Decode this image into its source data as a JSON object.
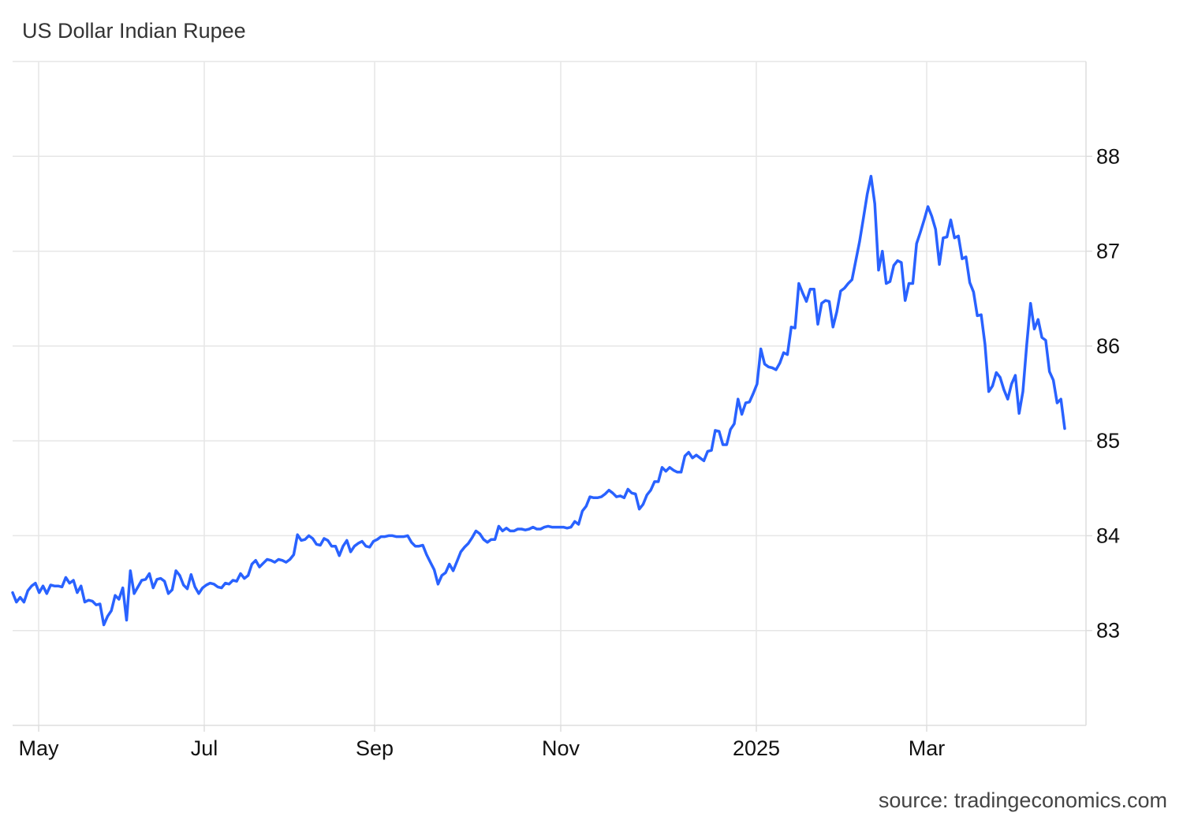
{
  "title": "US Dollar Indian Rupee",
  "source": "source: tradingeconomics.com",
  "colors": {
    "line": "#2962ff",
    "grid": "#e6e6e6",
    "axis": "#dddddd"
  },
  "chart_data": {
    "type": "line",
    "title": "US Dollar Indian Rupee",
    "xlabel": "",
    "ylabel": "",
    "x_ticks": [
      "May",
      "Jul",
      "Sep",
      "Nov",
      "2025",
      "Mar"
    ],
    "y_ticks": [
      83,
      84,
      85,
      86,
      87,
      88
    ],
    "ylim": [
      82,
      89
    ],
    "grid": true,
    "y_axis_side": "right",
    "series": [
      {
        "values": [
          83.4,
          83.3,
          83.35,
          83.3,
          83.42,
          83.47,
          83.5,
          83.4,
          83.47,
          83.39,
          83.48,
          83.47,
          83.47,
          83.46,
          83.56,
          83.5,
          83.53,
          83.4,
          83.47,
          83.3,
          83.32,
          83.31,
          83.27,
          83.28,
          83.06,
          83.15,
          83.21,
          83.37,
          83.33,
          83.45,
          83.11,
          83.63,
          83.39,
          83.46,
          83.53,
          83.54,
          83.6,
          83.45,
          83.54,
          83.55,
          83.52,
          83.39,
          83.43,
          83.63,
          83.58,
          83.48,
          83.44,
          83.59,
          83.46,
          83.39,
          83.45,
          83.48,
          83.5,
          83.49,
          83.46,
          83.45,
          83.5,
          83.49,
          83.53,
          83.52,
          83.6,
          83.55,
          83.58,
          83.7,
          83.74,
          83.67,
          83.71,
          83.75,
          83.74,
          83.72,
          83.75,
          83.74,
          83.72,
          83.75,
          83.8,
          84.01,
          83.95,
          83.96,
          84.0,
          83.97,
          83.91,
          83.9,
          83.97,
          83.95,
          83.89,
          83.89,
          83.79,
          83.89,
          83.95,
          83.83,
          83.89,
          83.92,
          83.94,
          83.89,
          83.88,
          83.94,
          83.96,
          83.99,
          83.99,
          84.0,
          84.0,
          83.99,
          83.99,
          83.99,
          84.0,
          83.93,
          83.89,
          83.89,
          83.9,
          83.8,
          83.72,
          83.64,
          83.49,
          83.58,
          83.61,
          83.7,
          83.63,
          83.73,
          83.83,
          83.88,
          83.92,
          83.98,
          84.05,
          84.02,
          83.96,
          83.93,
          83.96,
          83.96,
          84.1,
          84.05,
          84.08,
          84.05,
          84.05,
          84.07,
          84.07,
          84.06,
          84.07,
          84.09,
          84.07,
          84.07,
          84.09,
          84.1,
          84.09,
          84.09,
          84.09,
          84.09,
          84.08,
          84.09,
          84.15,
          84.12,
          84.26,
          84.31,
          84.41,
          84.4,
          84.4,
          84.41,
          84.44,
          84.48,
          84.45,
          84.41,
          84.42,
          84.4,
          84.49,
          84.45,
          84.44,
          84.28,
          84.33,
          84.43,
          84.48,
          84.57,
          84.57,
          84.72,
          84.68,
          84.72,
          84.69,
          84.67,
          84.67,
          84.84,
          84.88,
          84.82,
          84.85,
          84.82,
          84.79,
          84.89,
          84.9,
          85.11,
          85.1,
          84.96,
          84.96,
          85.12,
          85.18,
          85.44,
          85.28,
          85.4,
          85.41,
          85.5,
          85.6,
          85.97,
          85.81,
          85.78,
          85.77,
          85.75,
          85.82,
          85.93,
          85.91,
          86.2,
          86.19,
          86.66,
          86.56,
          86.47,
          86.6,
          86.6,
          86.23,
          86.45,
          86.48,
          86.47,
          86.2,
          86.36,
          86.58,
          86.61,
          86.66,
          86.7,
          86.9,
          87.1,
          87.35,
          87.6,
          87.79,
          87.5,
          86.8,
          87.0,
          86.66,
          86.68,
          86.85,
          86.9,
          86.88,
          86.48,
          86.66,
          86.66,
          87.08,
          87.2,
          87.33,
          87.47,
          87.37,
          87.23,
          86.86,
          87.14,
          87.15,
          87.33,
          87.14,
          87.16,
          86.92,
          86.94,
          86.67,
          86.57,
          86.32,
          86.33,
          86.02,
          85.52,
          85.58,
          85.72,
          85.67,
          85.54,
          85.44,
          85.6,
          85.69,
          85.29,
          85.52,
          86.01,
          86.45,
          86.18,
          86.28,
          86.09,
          86.06,
          85.73,
          85.64,
          85.4,
          85.44,
          85.13
        ]
      }
    ]
  }
}
